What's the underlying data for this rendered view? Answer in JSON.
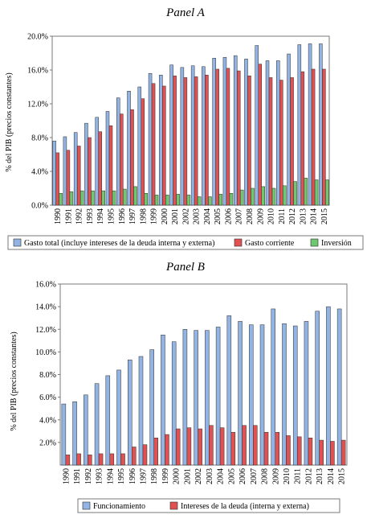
{
  "colors": {
    "blue": "#92b4e4",
    "red": "#e05252",
    "green": "#6fc86f",
    "stroke": "#2b2b2b"
  },
  "chart_data": [
    {
      "type": "bar",
      "title": "Panel A",
      "ylabel": "% del PIB (precios constantes)",
      "xlabel": "",
      "ylim": [
        0,
        20
      ],
      "yticks": [
        "0.0%",
        "4.0%",
        "8.0%",
        "12.0%",
        "16.0%",
        "20.0%"
      ],
      "grid": false,
      "legend": "bottom",
      "categories": [
        "1990",
        "1991",
        "1992",
        "1993",
        "1994",
        "1995",
        "1996",
        "1997",
        "1998",
        "1999",
        "2000",
        "2001",
        "2002",
        "2003",
        "2004",
        "2005",
        "2006",
        "2007",
        "2008",
        "2009",
        "2010",
        "2011",
        "2012",
        "2013",
        "2014",
        "2015"
      ],
      "series": [
        {
          "name": "Gasto total (incluye intereses de la deuda interna y externa)",
          "values": [
            7.6,
            8.1,
            8.6,
            9.7,
            10.4,
            11.1,
            12.7,
            13.5,
            14.0,
            15.6,
            15.4,
            16.6,
            16.3,
            16.5,
            16.4,
            17.4,
            17.5,
            17.7,
            17.3,
            18.9,
            17.1,
            17.1,
            17.9,
            19.0,
            19.1,
            19.1
          ]
        },
        {
          "name": "Gasto corriente",
          "values": [
            6.2,
            6.5,
            7.0,
            8.0,
            8.7,
            9.4,
            10.8,
            11.3,
            12.6,
            14.4,
            14.1,
            15.3,
            15.1,
            15.2,
            15.4,
            16.1,
            16.2,
            15.9,
            15.3,
            16.7,
            15.1,
            14.8,
            15.1,
            15.8,
            16.1,
            16.1
          ]
        },
        {
          "name": "Inversión",
          "values": [
            1.4,
            1.6,
            1.7,
            1.7,
            1.7,
            1.7,
            1.9,
            2.2,
            1.4,
            1.2,
            1.2,
            1.3,
            1.2,
            1.0,
            1.0,
            1.3,
            1.4,
            1.8,
            2.0,
            2.2,
            2.0,
            2.3,
            2.8,
            3.2,
            3.0,
            3.0
          ]
        }
      ]
    },
    {
      "type": "bar",
      "title": "Panel B",
      "ylabel": "% del PIB (precios constantes)",
      "xlabel": "",
      "ylim": [
        0,
        16
      ],
      "yticks": [
        "2.0%",
        "4.0%",
        "6.0%",
        "8.0%",
        "10.0%",
        "12.0%",
        "14.0%",
        "16.0%"
      ],
      "grid": false,
      "legend": "bottom",
      "categories": [
        "1990",
        "1991",
        "1992",
        "1993",
        "1994",
        "1995",
        "1996",
        "1997",
        "1998",
        "1999",
        "2000",
        "2001",
        "2002",
        "2003",
        "2004",
        "2005",
        "2006",
        "2007",
        "2008",
        "2009",
        "2010",
        "2011",
        "2012",
        "2013",
        "2014",
        "2015"
      ],
      "series": [
        {
          "name": "Funcionamiento",
          "values": [
            5.4,
            5.6,
            6.2,
            7.2,
            7.9,
            8.4,
            9.3,
            9.6,
            10.2,
            11.5,
            10.9,
            12.0,
            11.9,
            11.9,
            12.2,
            13.2,
            12.7,
            12.4,
            12.4,
            13.8,
            12.5,
            12.3,
            12.7,
            13.6,
            14.0,
            13.8
          ]
        },
        {
          "name": "Intereses de la deuda (interna y externa)",
          "values": [
            0.9,
            1.0,
            0.9,
            1.0,
            1.0,
            1.0,
            1.6,
            1.8,
            2.4,
            2.7,
            3.2,
            3.3,
            3.2,
            3.5,
            3.3,
            2.9,
            3.5,
            3.5,
            2.9,
            2.9,
            2.6,
            2.5,
            2.4,
            2.2,
            2.1,
            2.2
          ]
        }
      ]
    }
  ]
}
